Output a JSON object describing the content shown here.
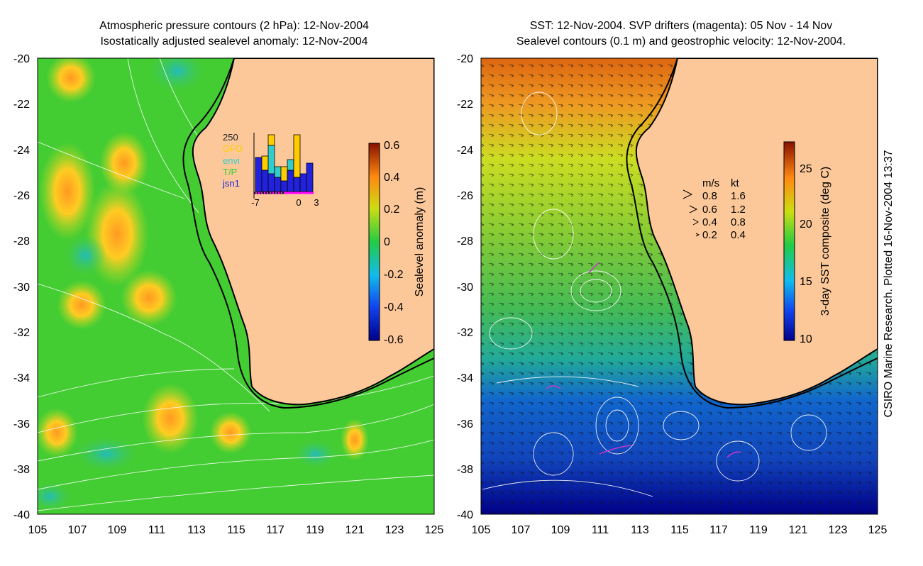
{
  "left_panel": {
    "title_line1": "Atmospheric pressure contours (2 hPa): 12-Nov-2004",
    "title_line2": "Isostatically adjusted sealevel anomaly: 12-Nov-2004",
    "colorbar": {
      "label": "Sealevel anomaly (m)",
      "ticks": [
        "0.6",
        "0.4",
        "0.2",
        "0",
        "-0.2",
        "-0.4",
        "-0.6"
      ]
    },
    "inset": {
      "ymax_label": "250",
      "legend": [
        {
          "label": "GFO",
          "color": "#ffcc00"
        },
        {
          "label": "envi",
          "color": "#33cccc"
        },
        {
          "label": "T/P",
          "color": "#33cc33"
        },
        {
          "label": "jsn1",
          "color": "#2222dd"
        }
      ],
      "xticks": [
        "-7",
        "0",
        "3"
      ]
    }
  },
  "right_panel": {
    "title_line1": "SST: 12-Nov-2004. SVP drifters (magenta): 05 Nov - 14 Nov",
    "title_line2": "Sealevel contours (0.1 m) and geostrophic velocity: 12-Nov-2004.",
    "colorbar": {
      "label": "3-day SST composite (deg C)",
      "ticks": [
        "25",
        "20",
        "15",
        "10"
      ]
    },
    "velocity_legend": {
      "header_ms": "m/s",
      "header_kt": "kt",
      "rows": [
        {
          "ms": "0.8",
          "kt": "1.6"
        },
        {
          "ms": "0.6",
          "kt": "1.2"
        },
        {
          "ms": "0.4",
          "kt": "0.8"
        },
        {
          "ms": "0.2",
          "kt": "0.4"
        }
      ]
    }
  },
  "axes": {
    "y_labels": [
      "-20",
      "-22",
      "-24",
      "-26",
      "-28",
      "-30",
      "-32",
      "-34",
      "-36",
      "-38",
      "-40"
    ],
    "x_labels": [
      "105",
      "107",
      "109",
      "111",
      "113",
      "115",
      "117",
      "119",
      "121",
      "123",
      "125"
    ]
  },
  "credit": "CSIRO Marine Research. Plotted 16-Nov-2004 13:37",
  "colors": {
    "land": "#fcc89a",
    "ocean_left": "#44cc33",
    "ssh_high": "#ffcc22",
    "ssh_low": "#22bbbb"
  }
}
